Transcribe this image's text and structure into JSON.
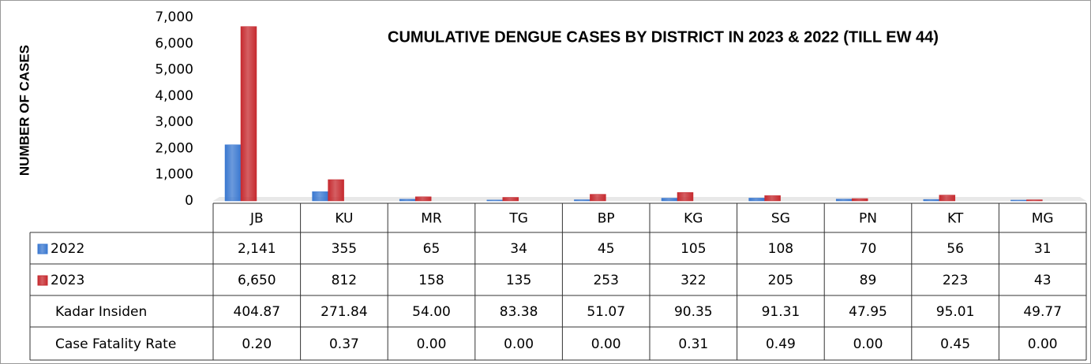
{
  "chart_data": {
    "type": "bar",
    "title": "CUMULATIVE DENGUE CASES BY DISTRICT IN 2023 & 2022 (TILL EW 44)",
    "y_label": "NUMBER OF CASES",
    "categories": [
      "JB",
      "KU",
      "MR",
      "TG",
      "BP",
      "KG",
      "SG",
      "PN",
      "KT",
      "MG"
    ],
    "series": [
      {
        "name": "2022",
        "color": "#3a78d0",
        "values": [
          2141,
          355,
          65,
          34,
          45,
          105,
          108,
          70,
          56,
          31
        ],
        "value_labels": [
          "2,141",
          "355",
          "65",
          "34",
          "45",
          "105",
          "108",
          "70",
          "56",
          "31"
        ]
      },
      {
        "name": "2023",
        "color": "#c62a2f",
        "values": [
          6650,
          812,
          158,
          135,
          253,
          322,
          205,
          89,
          223,
          43
        ],
        "value_labels": [
          "6,650",
          "812",
          "158",
          "135",
          "253",
          "322",
          "205",
          "89",
          "223",
          "43"
        ]
      }
    ],
    "extra_rows": [
      {
        "name": "Kadar Insiden",
        "values": [
          "404.87",
          "271.84",
          "54.00",
          "83.38",
          "51.07",
          "90.35",
          "91.31",
          "47.95",
          "95.01",
          "49.77"
        ]
      },
      {
        "name": "Case Fatality Rate",
        "values": [
          "0.20",
          "0.37",
          "0.00",
          "0.00",
          "0.00",
          "0.31",
          "0.49",
          "0.00",
          "0.45",
          "0.00"
        ]
      }
    ],
    "ylim": [
      0,
      7000
    ],
    "yticks": [
      0,
      {
        "value": 1000,
        "label": "1,000"
      },
      {
        "value": 2000,
        "label": "2,000"
      },
      {
        "value": 3000,
        "label": "3,000"
      },
      {
        "value": 4000,
        "label": "4,000"
      },
      {
        "value": 5000,
        "label": "5,000"
      },
      {
        "value": 6000,
        "label": "6,000"
      },
      {
        "value": 7000,
        "label": "7,000"
      }
    ],
    "grid": false
  }
}
